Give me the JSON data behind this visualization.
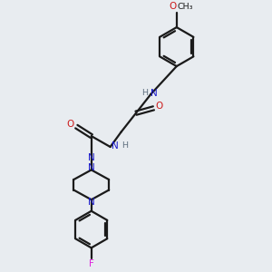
{
  "bg_color": "#e8ecf0",
  "bond_color": "#1a1a1a",
  "N_color": "#1a1acc",
  "O_color": "#cc1a1a",
  "F_color": "#dd22dd",
  "H_color": "#607080",
  "line_width": 1.6,
  "figsize": [
    3.0,
    3.0
  ],
  "dpi": 100,
  "xlim": [
    0,
    10
  ],
  "ylim": [
    0,
    10
  ]
}
